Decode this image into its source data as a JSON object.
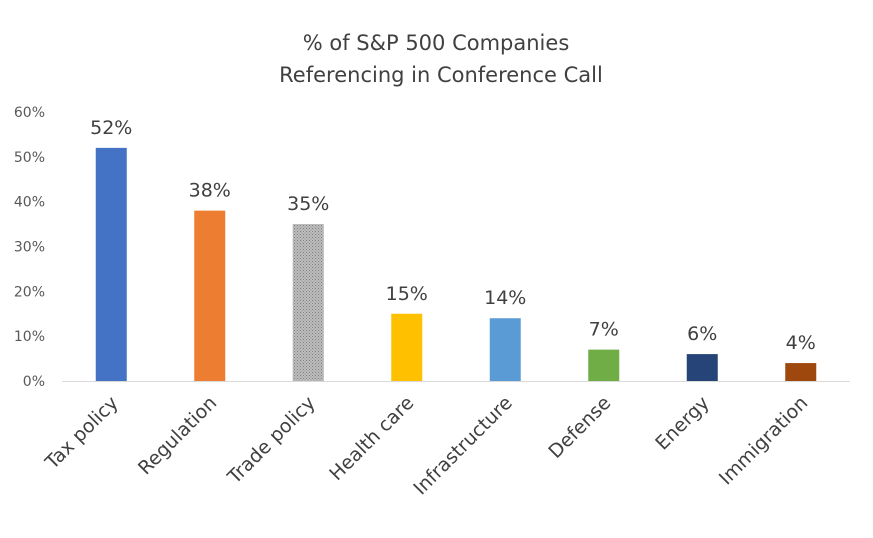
{
  "chart_data": {
    "type": "bar",
    "title_lines": [
      "% of S&P 500 Companies",
      "Referencing in Conference  Call"
    ],
    "categories": [
      "Tax policy",
      "Regulation",
      "Trade policy",
      "Health care",
      "Infrastructure",
      "Defense",
      "Energy",
      "Immigration"
    ],
    "values": [
      52,
      38,
      35,
      15,
      14,
      7,
      6,
      4
    ],
    "data_labels": [
      "52%",
      "38%",
      "35%",
      "15%",
      "14%",
      "7%",
      "6%",
      "4%"
    ],
    "bar_colors": [
      "#4472C4",
      "#ED7D31",
      "#A5A5A5",
      "#FFC000",
      "#5B9BD5",
      "#70AD47",
      "#264478",
      "#9E480E"
    ],
    "patterned_bar_index": 2,
    "yticks": [
      0,
      10,
      20,
      30,
      40,
      50,
      60
    ],
    "ytick_labels": [
      "0%",
      "10%",
      "20%",
      "30%",
      "40%",
      "50%",
      "60%"
    ],
    "ylim": [
      0,
      60
    ],
    "xlabel": "",
    "ylabel": "",
    "grid": false,
    "legend": false
  }
}
